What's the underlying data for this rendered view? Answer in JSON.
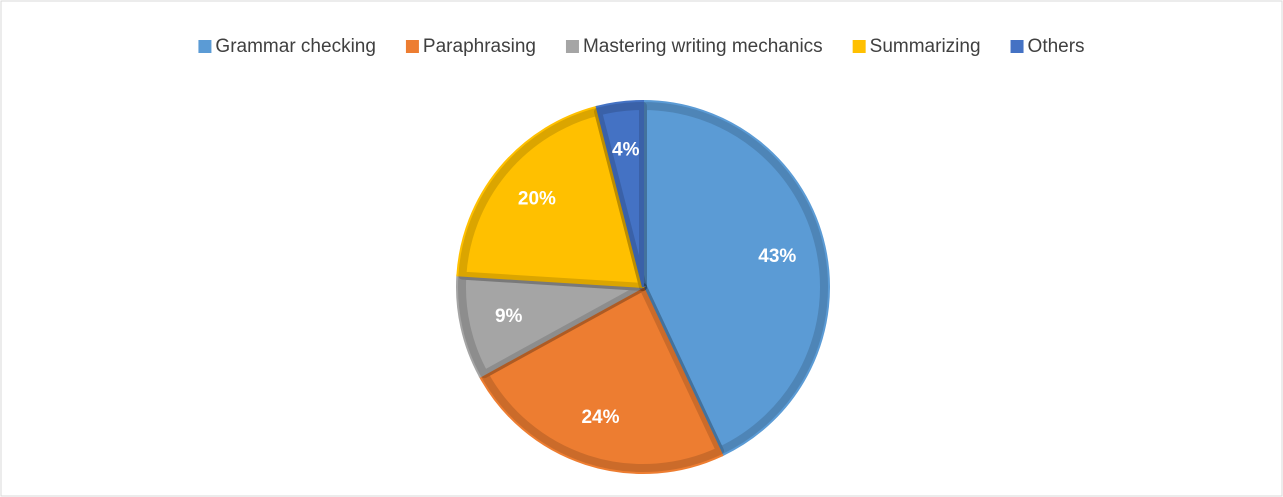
{
  "chart_data": {
    "type": "pie",
    "categories": [
      "Grammar checking",
      "Paraphrasing",
      "Mastering writing mechanics",
      "Summarizing",
      "Others"
    ],
    "values": [
      43,
      24,
      9,
      20,
      4
    ],
    "value_labels": [
      "43%",
      "24%",
      "9%",
      "20%",
      "4%"
    ],
    "colors": [
      "#5b9bd5",
      "#ed7d31",
      "#a5a5a5",
      "#ffc000",
      "#4472c4"
    ],
    "legend": "top"
  }
}
